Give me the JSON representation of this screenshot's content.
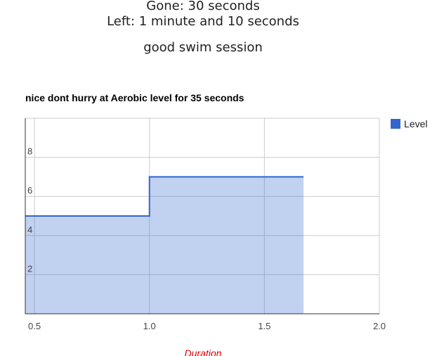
{
  "status": {
    "gone": "Gone: 30 seconds",
    "left": "Left: 1 minute and 10 seconds",
    "session": "good swim session"
  },
  "chart_data": {
    "type": "area",
    "title": "nice dont hurry at Aerobic level for 35 seconds",
    "xlabel": "Duration",
    "ylabel": "",
    "xlim": [
      0.46,
      2.0
    ],
    "ylim": [
      0,
      10
    ],
    "x_ticks": [
      0.5,
      1.0,
      1.5,
      2.0
    ],
    "x_tick_labels": [
      "0.5",
      "1.0",
      "1.5",
      "2.0"
    ],
    "y_ticks": [
      2,
      4,
      6,
      8
    ],
    "y_tick_labels": [
      "2",
      "4",
      "6",
      "8"
    ],
    "grid": true,
    "legend_position": "right",
    "series": [
      {
        "name": "Level",
        "color": "#3366cc",
        "step": true,
        "points": [
          {
            "x": 0.46,
            "y": 5
          },
          {
            "x": 1.0,
            "y": 5
          },
          {
            "x": 1.0,
            "y": 7
          },
          {
            "x": 1.67,
            "y": 7
          }
        ]
      }
    ]
  }
}
